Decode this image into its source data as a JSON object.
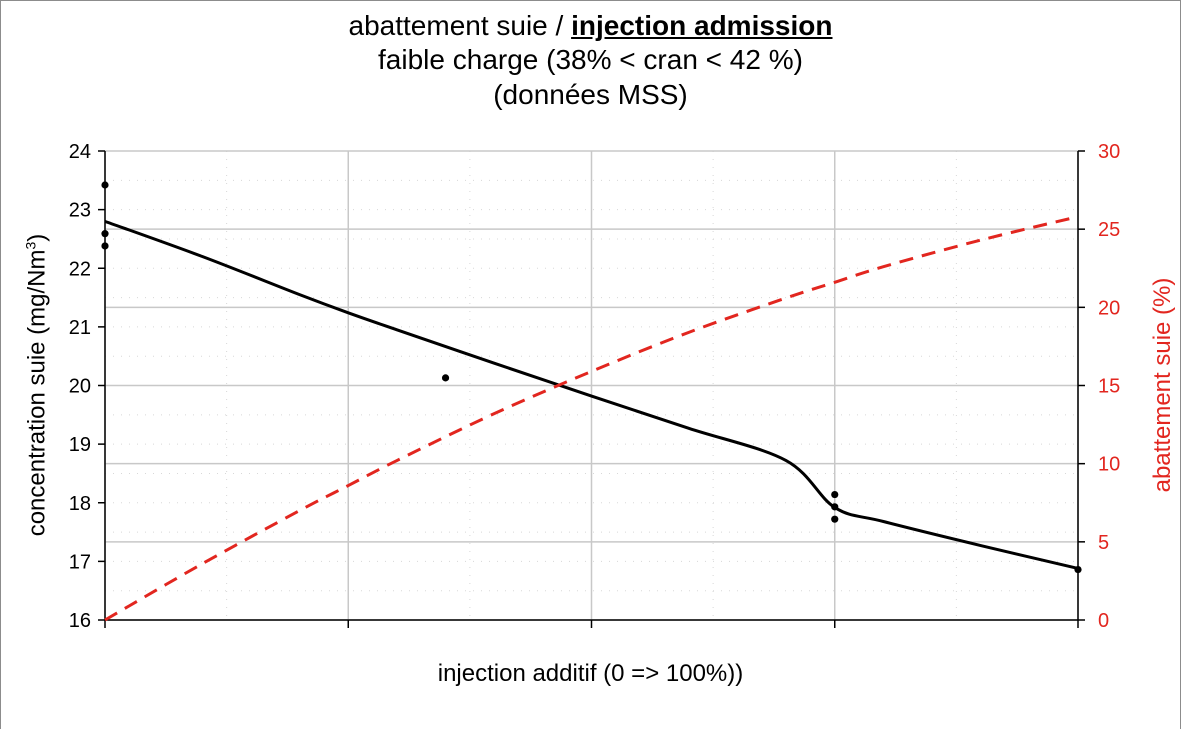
{
  "chart_data": {
    "type": "scatter",
    "title_prefix": "abattement suie / ",
    "title_bold": "injection admission",
    "subtitle": "faible charge (38% < cran < 42 %)",
    "subtitle2": "(données MSS)",
    "xlabel": "injection additif (0 => 100%))",
    "ylabel_base": "concentration suie (mg/Nm",
    "ylabel_sup": "3",
    "ylabel_end": ")",
    "y2label": "abattement suie (%)",
    "xlim": [
      0,
      100
    ],
    "ylim": [
      16,
      24
    ],
    "y2lim": [
      0,
      30
    ],
    "x_ticks": [
      0,
      25,
      50,
      75,
      100
    ],
    "y_ticks": [
      16,
      17,
      18,
      19,
      20,
      21,
      22,
      23,
      24
    ],
    "y_tick_labels": [
      "16",
      "17",
      "18",
      "19",
      "20",
      "21",
      "22",
      "23",
      "24"
    ],
    "y2_ticks": [
      0,
      5,
      10,
      15,
      20,
      25,
      30
    ],
    "y2_tick_labels": [
      "0",
      "5",
      "10",
      "15",
      "20",
      "25",
      "30"
    ],
    "grid": true,
    "series": [
      {
        "kind": "points",
        "color": "#000000",
        "axis": "left",
        "points": [
          {
            "x": 0,
            "y": 23.42
          },
          {
            "x": 0,
            "y": 22.59
          },
          {
            "x": 0,
            "y": 22.38
          },
          {
            "x": 35,
            "y": 20.13
          },
          {
            "x": 75,
            "y": 18.14
          },
          {
            "x": 75,
            "y": 17.93
          },
          {
            "x": 75,
            "y": 17.72
          },
          {
            "x": 100,
            "y": 16.86
          }
        ]
      },
      {
        "kind": "fit",
        "color": "#000000",
        "axis": "left",
        "style": "solid",
        "x": [
          0,
          10,
          20,
          25,
          30,
          40,
          50,
          60,
          70,
          75,
          80,
          90,
          100
        ],
        "y": [
          22.8,
          22.2,
          21.55,
          21.24,
          20.95,
          20.38,
          19.82,
          19.27,
          18.72,
          17.92,
          17.68,
          17.27,
          16.88
        ]
      },
      {
        "kind": "fit",
        "color": "#e2261f",
        "axis": "right",
        "style": "dashed",
        "x": [
          0,
          10,
          20,
          25,
          30,
          40,
          50,
          60,
          70,
          75,
          80,
          90,
          100
        ],
        "y": [
          0,
          3.6,
          7.0,
          8.6,
          10.2,
          13.2,
          15.9,
          18.4,
          20.6,
          21.6,
          22.6,
          24.3,
          25.8
        ]
      }
    ]
  }
}
